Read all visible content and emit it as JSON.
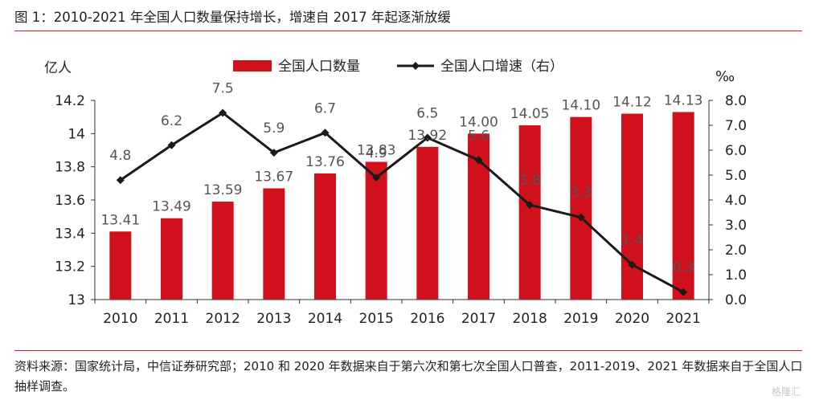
{
  "title": "图 1：2010-2021 年全国人口数量保持增长，增速自 2017 年起逐渐放缓",
  "source_note": "资料来源：国家统计局，中信证券研究部；2010 和 2020 年数据来自于第六次和第七次全国人口普查，2011-2019、2021 年数据来自于全国人口抽样调查。",
  "watermark": "格隆汇",
  "colors": {
    "bar": "#d0101b",
    "line": "#1a1a1a",
    "rule": "#c0272d"
  },
  "chart_data": {
    "type": "bar+line",
    "categories": [
      "2010",
      "2011",
      "2012",
      "2013",
      "2014",
      "2015",
      "2016",
      "2017",
      "2018",
      "2019",
      "2020",
      "2021"
    ],
    "series": [
      {
        "name": "全国人口数量",
        "type": "bar",
        "axis": "left",
        "values": [
          13.41,
          13.49,
          13.59,
          13.67,
          13.76,
          13.83,
          13.92,
          14.0,
          14.05,
          14.1,
          14.12,
          14.13
        ],
        "labels": [
          "13.41",
          "13.49",
          "13.59",
          "13.67",
          "13.76",
          "13.83",
          "13.92",
          "14.00",
          "14.05",
          "14.10",
          "14.12",
          "14.13"
        ]
      },
      {
        "name": "全国人口增速（右）",
        "type": "line",
        "axis": "right",
        "values": [
          4.8,
          6.2,
          7.5,
          5.9,
          6.7,
          4.9,
          6.5,
          5.6,
          3.8,
          3.3,
          1.4,
          0.3
        ],
        "labels": [
          "4.8",
          "6.2",
          "7.5",
          "5.9",
          "6.7",
          "4.9",
          "6.5",
          "5.6",
          "3.8",
          "3.3",
          "1.4",
          "0.3"
        ]
      }
    ],
    "ylabel_left": "亿人",
    "ylabel_right": "‰",
    "ylim_left": [
      13,
      14.2
    ],
    "ylim_right": [
      0,
      8
    ],
    "yticks_left": [
      "13",
      "13.2",
      "13.4",
      "13.6",
      "13.8",
      "14",
      "14.2"
    ],
    "yticks_right": [
      "0.0",
      "1.0",
      "2.0",
      "3.0",
      "4.0",
      "5.0",
      "6.0",
      "7.0",
      "8.0"
    ],
    "legend_position": "top",
    "grid": false
  }
}
